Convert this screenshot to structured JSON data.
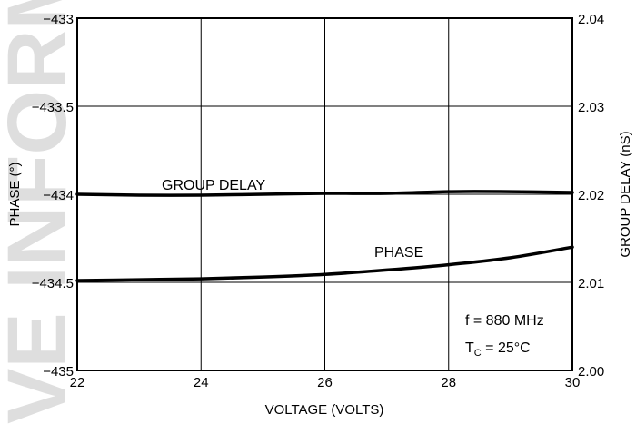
{
  "chart_data": {
    "type": "line",
    "x": [
      22,
      23,
      24,
      25,
      26,
      27,
      28,
      29,
      30
    ],
    "xlabel": "VOLTAGE (VOLTS)",
    "xlim": [
      22,
      30
    ],
    "x_ticks": [
      "22",
      "24",
      "26",
      "28",
      "30"
    ],
    "ylabel_left": "PHASE (°)",
    "ylim_left": [
      -435,
      -433
    ],
    "y_ticks_left": [
      "−433",
      "−433.5",
      "−434",
      "−434.5",
      "−435"
    ],
    "ylabel_right": "GROUP DELAY (nS)",
    "ylim_right": [
      2.0,
      2.04
    ],
    "y_ticks_right": [
      "2.04",
      "2.03",
      "2.02",
      "2.01",
      "2.00"
    ],
    "grid": true,
    "series": [
      {
        "name": "GROUP DELAY",
        "axis": "right",
        "values": [
          2.02,
          2.0199,
          2.0199,
          2.02,
          2.0201,
          2.0201,
          2.0203,
          2.0203,
          2.0202
        ]
      },
      {
        "name": "PHASE",
        "axis": "left",
        "values": [
          -434.49,
          -434.485,
          -434.48,
          -434.47,
          -434.455,
          -434.43,
          -434.4,
          -434.36,
          -434.3
        ]
      }
    ],
    "annotations": {
      "freq": "f = 880 MHz",
      "temp_prefix": "T",
      "temp_sub": "C",
      "temp_suffix": " = 25°C"
    },
    "watermark": "VE INFORMA"
  }
}
